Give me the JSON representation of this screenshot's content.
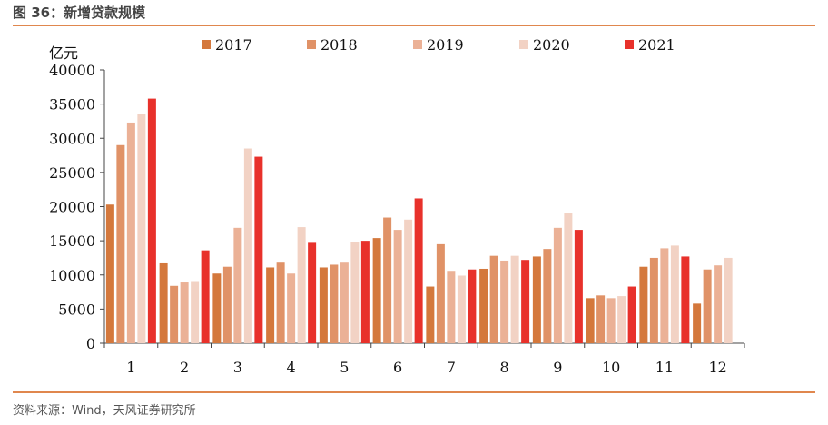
{
  "header": {
    "title": "图 36：新增贷款规模"
  },
  "footer": {
    "source": "资料来源：Wind，天风证券研究所"
  },
  "colors": {
    "rule": "#E0874E"
  },
  "chart_data": {
    "type": "bar",
    "unit_label": "亿元",
    "categories": [
      "1",
      "2",
      "3",
      "4",
      "5",
      "6",
      "7",
      "8",
      "9",
      "10",
      "11",
      "12"
    ],
    "ylim": [
      0,
      40000
    ],
    "yticks": [
      0,
      5000,
      10000,
      15000,
      20000,
      25000,
      30000,
      35000,
      40000
    ],
    "grid": false,
    "legend_position": "top",
    "series": [
      {
        "name": "2017",
        "color": "#D4783C",
        "values": [
          20300,
          11700,
          10200,
          11100,
          11100,
          15400,
          8300,
          10900,
          12700,
          6600,
          11200,
          5800
        ]
      },
      {
        "name": "2018",
        "color": "#E09267",
        "values": [
          29000,
          8400,
          11200,
          11800,
          11500,
          18400,
          14500,
          12800,
          13800,
          7000,
          12500,
          10800
        ]
      },
      {
        "name": "2019",
        "color": "#EBB196",
        "values": [
          32300,
          8900,
          16900,
          10200,
          11800,
          16600,
          10600,
          12100,
          16900,
          6600,
          13900,
          11400
        ]
      },
      {
        "name": "2020",
        "color": "#F2D2C4",
        "values": [
          33500,
          9100,
          28500,
          17000,
          14800,
          18100,
          9900,
          12800,
          19000,
          6900,
          14300,
          12500
        ]
      },
      {
        "name": "2021",
        "color": "#E8312B",
        "values": [
          35800,
          13600,
          27300,
          14700,
          15000,
          21200,
          10800,
          12200,
          16600,
          8300,
          12700,
          null
        ]
      }
    ]
  }
}
